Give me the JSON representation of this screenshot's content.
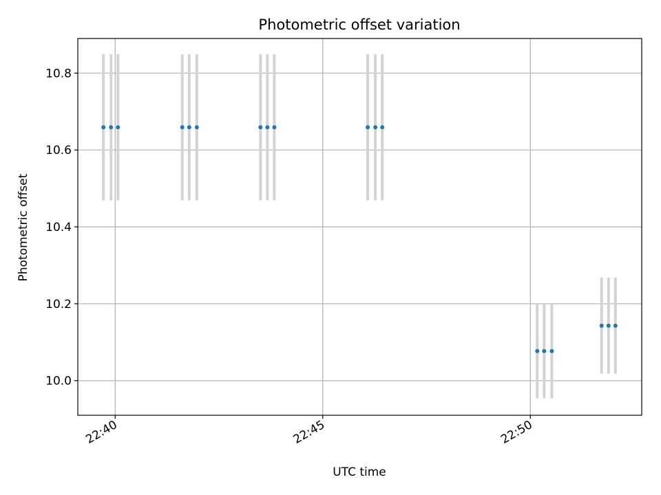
{
  "chart_data": {
    "type": "scatter",
    "title": "Photometric offset variation",
    "xlabel": "UTC time",
    "ylabel": "Photometric offset",
    "x_ticks": [
      "22:40",
      "22:45",
      "22:50"
    ],
    "y_ticks": [
      "10.0",
      "10.2",
      "10.4",
      "10.6",
      "10.8"
    ],
    "xlim": [
      "22:39:06",
      "22:52:41"
    ],
    "ylim": [
      9.91,
      10.89
    ],
    "grid": true,
    "colors": {
      "point": "#1f77b4",
      "errorbar": "#d3d3d3",
      "grid": "#b0b0b0"
    },
    "series": [
      {
        "points": [
          {
            "x": "22:39:43",
            "y": 10.659,
            "yerr": 0.19
          },
          {
            "x": "22:39:54",
            "y": 10.659,
            "yerr": 0.19
          },
          {
            "x": "22:40:04",
            "y": 10.659,
            "yerr": 0.19
          },
          {
            "x": "22:41:37",
            "y": 10.659,
            "yerr": 0.19
          },
          {
            "x": "22:41:47",
            "y": 10.659,
            "yerr": 0.19
          },
          {
            "x": "22:41:58",
            "y": 10.659,
            "yerr": 0.19
          },
          {
            "x": "22:43:30",
            "y": 10.659,
            "yerr": 0.19
          },
          {
            "x": "22:43:40",
            "y": 10.659,
            "yerr": 0.19
          },
          {
            "x": "22:43:50",
            "y": 10.659,
            "yerr": 0.19
          },
          {
            "x": "22:46:05",
            "y": 10.659,
            "yerr": 0.19
          },
          {
            "x": "22:46:16",
            "y": 10.659,
            "yerr": 0.19
          },
          {
            "x": "22:46:26",
            "y": 10.659,
            "yerr": 0.19
          },
          {
            "x": "22:50:10",
            "y": 10.077,
            "yerr": 0.123
          },
          {
            "x": "22:50:20",
            "y": 10.077,
            "yerr": 0.123
          },
          {
            "x": "22:50:31",
            "y": 10.077,
            "yerr": 0.123
          },
          {
            "x": "22:51:43",
            "y": 10.143,
            "yerr": 0.125
          },
          {
            "x": "22:51:53",
            "y": 10.143,
            "yerr": 0.125
          },
          {
            "x": "22:52:03",
            "y": 10.143,
            "yerr": 0.125
          }
        ]
      }
    ]
  }
}
